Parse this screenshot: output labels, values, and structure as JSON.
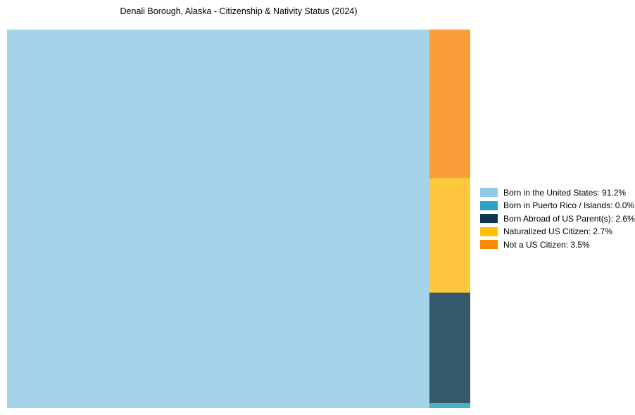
{
  "chart_data": {
    "type": "treemap",
    "title": "Denali Borough, Alaska - Citizenship & Nativity Status (2024)",
    "legend_position": "right",
    "total_percent": 100,
    "series": [
      {
        "name": "Born in the United States",
        "value": 91.2,
        "label": "Born in the United States: 91.2%",
        "color": "#8FCAE7",
        "chart_color": "#A4D4EA"
      },
      {
        "name": "Born in Puerto Rico / Islands",
        "value": 0.0,
        "label": "Born in Puerto Rico / Islands: 0.0%",
        "color": "#2EA3BF",
        "chart_color": "#4CAFC5"
      },
      {
        "name": "Born Abroad of US Parent(s)",
        "value": 2.6,
        "label": "Born Abroad of US Parent(s): 2.6%",
        "color": "#103750",
        "chart_color": "#33596B"
      },
      {
        "name": "Naturalized US Citizen",
        "value": 2.7,
        "label": "Naturalized US Citizen: 2.7%",
        "color": "#FFC107",
        "chart_color": "#FFC73E"
      },
      {
        "name": "Not a US Citizen",
        "value": 3.5,
        "label": "Not a US Citizen: 3.5%",
        "color": "#FB8C00",
        "chart_color": "#FA9D3B"
      }
    ],
    "layout_hints": {
      "main_series": "Born in the United States",
      "minor_column_top_to_bottom": [
        "Not a US Citizen",
        "Naturalized US Citizen",
        "Born Abroad of US Parent(s)",
        "Born in Puerto Rico / Islands"
      ],
      "grid": "off",
      "axes": "off"
    }
  }
}
